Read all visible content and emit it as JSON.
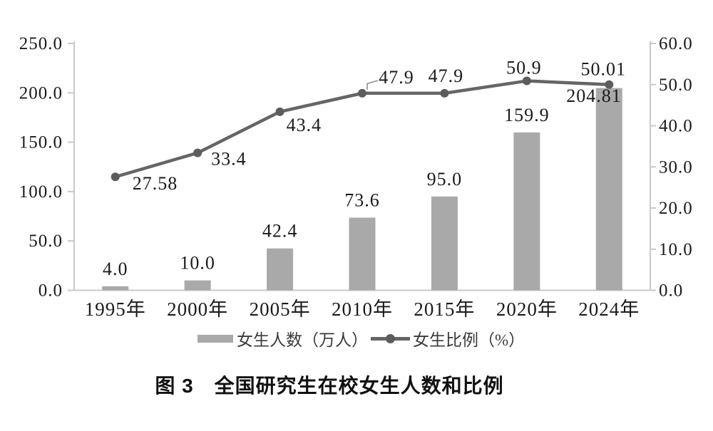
{
  "caption": "图 3　全国研究生在校女生人数和比例",
  "colors": {
    "bar": "#a9a9a9",
    "line": "#656565",
    "marker": "#5c5c5c",
    "axis_line": "#c9c9c9",
    "text": "#1a1a1a"
  },
  "chart_data": {
    "type": "combo-bar-line",
    "title": "图 3　全国研究生在校女生人数和比例",
    "categories": [
      "1995年",
      "2000年",
      "2005年",
      "2010年",
      "2015年",
      "2020年",
      "2024年"
    ],
    "series": [
      {
        "name": "女生人数（万人）",
        "type": "bar",
        "axis": "left",
        "values": [
          4.0,
          10.0,
          42.4,
          73.6,
          95.0,
          159.9,
          204.81
        ],
        "labels": [
          "4.0",
          "10.0",
          "42.4",
          "73.6",
          "95.0",
          "159.9",
          "204.81"
        ]
      },
      {
        "name": "女生比例（%）",
        "type": "line",
        "axis": "right",
        "values": [
          27.58,
          33.4,
          43.4,
          47.9,
          47.9,
          50.9,
          50.01
        ],
        "labels": [
          "27.58",
          "33.4",
          "43.4",
          "47.9",
          "47.9",
          "50.9",
          "50.01"
        ]
      }
    ],
    "left_axis": {
      "min": 0,
      "max": 250,
      "step": 50,
      "tick_values": [
        0,
        50,
        100,
        150,
        200,
        250
      ],
      "tick_labels": [
        "0.0",
        "50.0",
        "100.0",
        "150.0",
        "200.0",
        "250.0"
      ]
    },
    "right_axis": {
      "min": 0,
      "max": 60,
      "step": 10,
      "tick_values": [
        0,
        10,
        20,
        30,
        40,
        50,
        60
      ],
      "tick_labels": [
        "0.0",
        "10.0",
        "20.0",
        "30.0",
        "40.0",
        "50.0",
        "60.0"
      ]
    },
    "legend": [
      {
        "label": "女生人数（万人）",
        "swatch": "bar"
      },
      {
        "label": "女生比例（%）",
        "swatch": "line"
      }
    ],
    "grid": false,
    "legend_position": "bottom"
  }
}
